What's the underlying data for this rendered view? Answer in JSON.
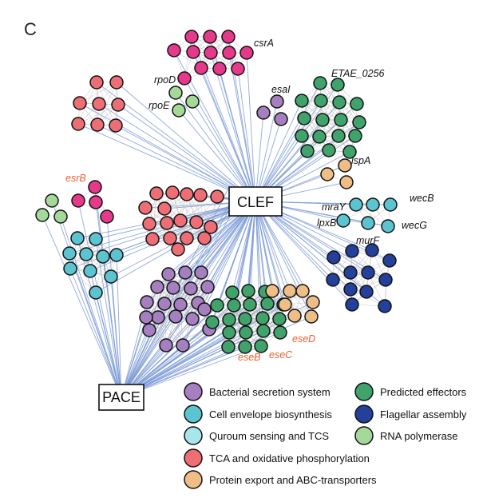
{
  "panel_label": "C",
  "hubs": {
    "clef": "CLEF",
    "pace": "PACE"
  },
  "colors": {
    "bacterial_secretion": "#a57fbf",
    "cell_envelope": "#5cc4d0",
    "quorum_sensing": "#a8e6ec",
    "tca": "#ee6e76",
    "protein_export": "#efbd86",
    "predicted_effectors": "#3fa36b",
    "flagellar": "#23409a",
    "rna_polymerase": "#a5d99a",
    "pink_cluster": "#e7398c",
    "edge_hub": "#7d9ad6",
    "edge_intra": "#bbbbbb",
    "gene_highlight": "#e8602c"
  },
  "gene_labels": [
    {
      "key": "csrA",
      "text": "csrA",
      "highlight": false
    },
    {
      "key": "rpoD",
      "text": "rpoD",
      "highlight": false
    },
    {
      "key": "rpoE",
      "text": "rpoE",
      "highlight": false
    },
    {
      "key": "esaI",
      "text": "esaI",
      "highlight": false
    },
    {
      "key": "ETAE_0256",
      "text": "ETAE_0256",
      "highlight": false
    },
    {
      "key": "lspA",
      "text": "lspA",
      "highlight": false
    },
    {
      "key": "esrB",
      "text": "esrB",
      "highlight": true
    },
    {
      "key": "mraY",
      "text": "mraY",
      "highlight": false
    },
    {
      "key": "wecB",
      "text": "wecB",
      "highlight": false
    },
    {
      "key": "lpxB",
      "text": "lpxB",
      "highlight": false
    },
    {
      "key": "wecG",
      "text": "wecG",
      "highlight": false
    },
    {
      "key": "murF",
      "text": "murF",
      "highlight": false
    },
    {
      "key": "eseD",
      "text": "eseD",
      "highlight": true
    },
    {
      "key": "eseB",
      "text": "eseB",
      "highlight": true
    },
    {
      "key": "eseC",
      "text": "eseC",
      "highlight": true
    }
  ],
  "legend": [
    {
      "label": "Bacterial secretion system",
      "color_key": "bacterial_secretion"
    },
    {
      "label": "Cell envelope biosynthesis",
      "color_key": "cell_envelope"
    },
    {
      "label": "Quroum sensing and TCS",
      "color_key": "quorum_sensing"
    },
    {
      "label": "TCA and oxidative phosphorylation",
      "color_key": "tca"
    },
    {
      "label": "Protein export and ABC-transporters",
      "color_key": "protein_export"
    },
    {
      "label": "Predicted effectors",
      "color_key": "predicted_effectors"
    },
    {
      "label": "Flagellar assembly",
      "color_key": "flagellar"
    },
    {
      "label": "RNA polymerase",
      "color_key": "rna_polymerase"
    }
  ]
}
